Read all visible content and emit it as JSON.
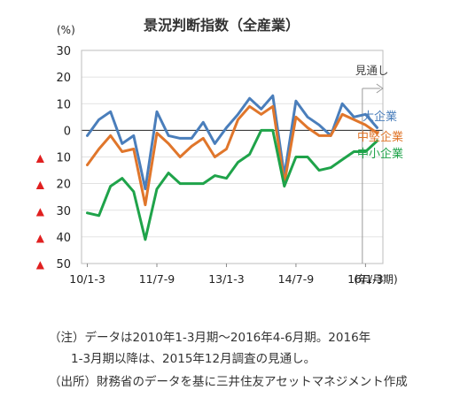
{
  "chart_data": {
    "type": "line",
    "title": "景況判断指数（全産業）",
    "unit_label": "(%)",
    "xlabel": "(年/月期)",
    "ylim": [
      -50,
      30
    ],
    "yticks": [
      {
        "value": 30,
        "label": "30",
        "neg": false
      },
      {
        "value": 20,
        "label": "20",
        "neg": false
      },
      {
        "value": 10,
        "label": "10",
        "neg": false
      },
      {
        "value": 0,
        "label": "0",
        "neg": false
      },
      {
        "value": -10,
        "label": "10",
        "neg": true
      },
      {
        "value": -20,
        "label": "20",
        "neg": true
      },
      {
        "value": -30,
        "label": "30",
        "neg": true
      },
      {
        "value": -40,
        "label": "40",
        "neg": true
      },
      {
        "value": -50,
        "label": "50",
        "neg": true
      }
    ],
    "neg_marker": "▲",
    "x_tick_labels": [
      {
        "index": 0,
        "label": "10/1-3"
      },
      {
        "index": 6,
        "label": "11/7-9"
      },
      {
        "index": 12,
        "label": "13/1-3"
      },
      {
        "index": 18,
        "label": "14/7-9"
      },
      {
        "index": 24,
        "label": "16/1-3"
      }
    ],
    "n_points": 26,
    "forecast_start_index": 24,
    "forecast_label": "見通し",
    "series": [
      {
        "name": "大企業",
        "color": "#4a7ebb",
        "values": [
          -2,
          4,
          7,
          -5,
          -2,
          -22,
          7,
          -2,
          -3,
          -3,
          3,
          -5,
          1,
          6,
          12,
          8,
          13,
          -17,
          11,
          5,
          2,
          -2,
          10,
          5,
          6,
          1
        ]
      },
      {
        "name": "中堅企業",
        "color": "#e0762b",
        "values": [
          -13,
          -7,
          -2,
          -8,
          -7,
          -28,
          -1,
          -5,
          -10,
          -6,
          -3,
          -10,
          -7,
          4,
          9,
          6,
          9,
          -20,
          5,
          1,
          -2,
          -2,
          6,
          4,
          2,
          -1
        ]
      },
      {
        "name": "中小企業",
        "color": "#1fa34a",
        "values": [
          -31,
          -32,
          -21,
          -18,
          -23,
          -41,
          -22,
          -16,
          -20,
          -20,
          -20,
          -17,
          -18,
          -12,
          -9,
          0,
          0,
          -21,
          -10,
          -10,
          -15,
          -14,
          -11,
          -8,
          -8,
          -4
        ]
      }
    ]
  },
  "notes": {
    "line1": "（注）データは2010年1-3月期～2016年4-6月期。2016年",
    "line2": "1-3月期以降は、2015年12月調査の見通し。",
    "line3": "（出所）財務省のデータを基に三井住友アセットマネジメント作成"
  }
}
